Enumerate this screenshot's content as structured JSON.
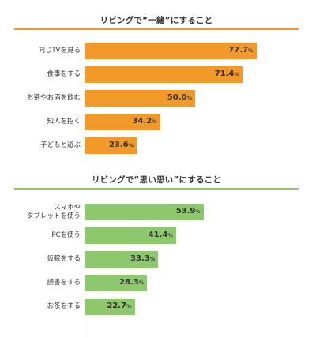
{
  "chart_data": [
    {
      "type": "bar",
      "orientation": "horizontal",
      "title": "リビングで“一緒”にすること",
      "color": "#f29a29",
      "rule_color": "#f29a29",
      "unit": "%",
      "xlim": [
        0,
        100
      ],
      "categories": [
        "同じTVを見る",
        "食事をする",
        "お茶やお酒を飲む",
        "知人を招く",
        "子どもと遊ぶ"
      ],
      "values": [
        77.7,
        71.4,
        50.0,
        34.2,
        23.6
      ],
      "value_labels": [
        "77.7",
        "71.4",
        "50.0",
        "34.2",
        "23.6"
      ]
    },
    {
      "type": "bar",
      "orientation": "horizontal",
      "title": "リビングで“思い思い”にすること",
      "color": "#8dc86e",
      "rule_color": "#8dc86e",
      "unit": "%",
      "xlim": [
        0,
        100
      ],
      "categories": [
        "スマホや\nタブレットを使う",
        "PCを使う",
        "仮眠をする",
        "読書をする",
        "お茶をする"
      ],
      "values": [
        53.9,
        41.4,
        33.3,
        28.3,
        22.7
      ],
      "value_labels": [
        "53.9",
        "41.4",
        "33.3",
        "28.3",
        "22.7"
      ]
    }
  ]
}
